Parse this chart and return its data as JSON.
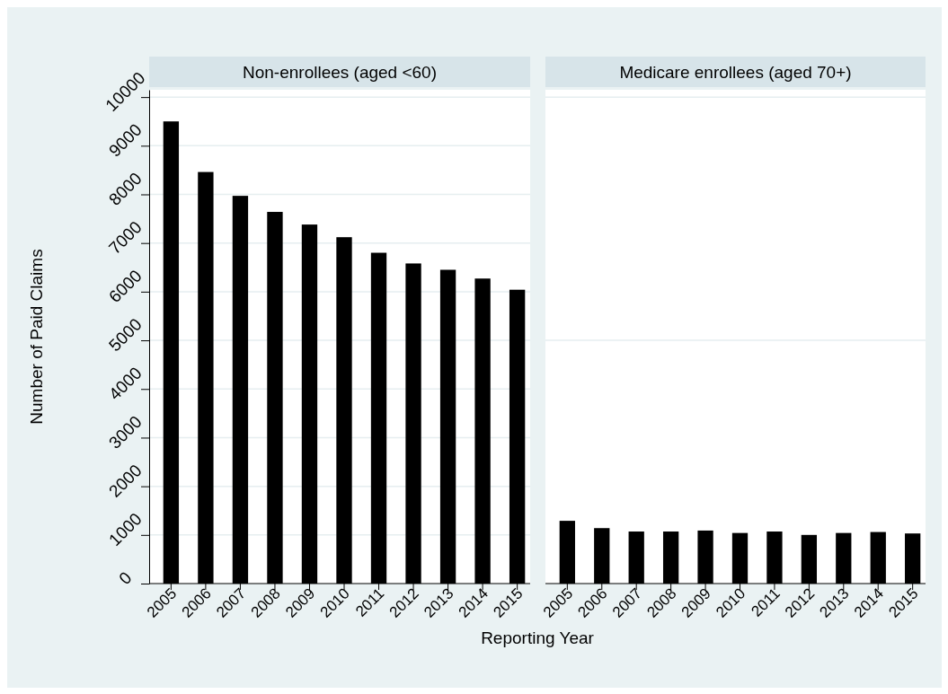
{
  "chart_data": [
    {
      "type": "bar",
      "title": "Non-enrollees (aged <60)",
      "xlabel": "Reporting Year",
      "ylabel": "Number of Paid Claims",
      "categories": [
        "2005",
        "2006",
        "2007",
        "2008",
        "2009",
        "2010",
        "2011",
        "2012",
        "2013",
        "2014",
        "2015"
      ],
      "series": [
        {
          "color": "#000000",
          "values": [
            9500,
            8460,
            7970,
            7640,
            7380,
            7120,
            6800,
            6580,
            6450,
            6270,
            6040
          ]
        }
      ],
      "ylim": [
        0,
        10150
      ],
      "yticks": [
        0,
        1000,
        2000,
        3000,
        4000,
        5000,
        6000,
        7000,
        8000,
        9000,
        10000
      ],
      "grid": "y"
    },
    {
      "type": "bar",
      "title": "Medicare enrollees (aged 70+)",
      "categories": [
        "2005",
        "2006",
        "2007",
        "2008",
        "2009",
        "2010",
        "2011",
        "2012",
        "2013",
        "2014",
        "2015"
      ],
      "series": [
        {
          "color": "#000000",
          "values": [
            1290,
            1140,
            1070,
            1070,
            1090,
            1040,
            1070,
            1000,
            1040,
            1060,
            1030
          ]
        }
      ],
      "ylim": [
        0,
        10150
      ],
      "yticks": [
        0,
        5000,
        10000
      ],
      "grid": "y",
      "tick_labels": "x"
    }
  ]
}
